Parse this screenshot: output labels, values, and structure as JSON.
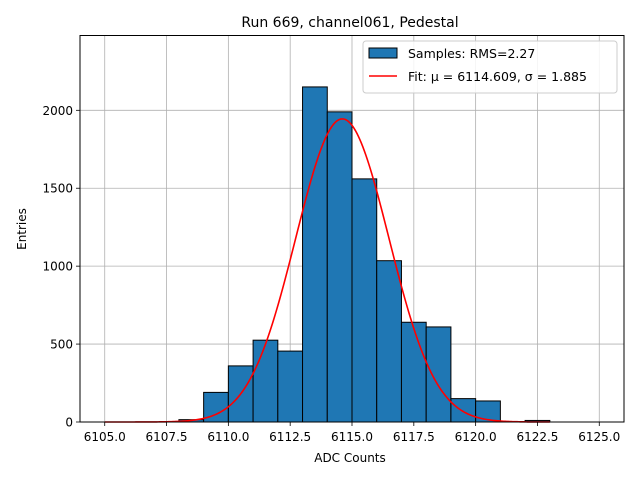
{
  "chart_data": {
    "type": "bar",
    "title": "Run 669, channel061, Pedestal",
    "xlabel": "ADC Counts",
    "ylabel": "Entries",
    "xlim": [
      6104.0,
      6126.0
    ],
    "ylim": [
      0,
      2480
    ],
    "xticks": [
      6105.0,
      6107.5,
      6110.0,
      6112.5,
      6115.0,
      6117.5,
      6120.0,
      6122.5,
      6125.0
    ],
    "xtick_labels": [
      "6105.0",
      "6107.5",
      "6110.0",
      "6112.5",
      "6115.0",
      "6117.5",
      "6120.0",
      "6122.5",
      "6125.0"
    ],
    "yticks": [
      0,
      500,
      1000,
      1500,
      2000
    ],
    "ytick_labels": [
      "0",
      "500",
      "1000",
      "1500",
      "2000"
    ],
    "grid": true,
    "legend_position": "top-right",
    "histogram": {
      "name": "Samples: RMS=2.27",
      "color": "#1f77b4",
      "bin_width": 1.0,
      "bins": [
        {
          "x0": 6108,
          "count": 15
        },
        {
          "x0": 6109,
          "count": 190
        },
        {
          "x0": 6110,
          "count": 360
        },
        {
          "x0": 6111,
          "count": 525
        },
        {
          "x0": 6112,
          "count": 455
        },
        {
          "x0": 6113,
          "count": 2150
        },
        {
          "x0": 6114,
          "count": 1990
        },
        {
          "x0": 6115,
          "count": 1560
        },
        {
          "x0": 6116,
          "count": 1035
        },
        {
          "x0": 6117,
          "count": 640
        },
        {
          "x0": 6118,
          "count": 610
        },
        {
          "x0": 6119,
          "count": 150
        },
        {
          "x0": 6120,
          "count": 135
        },
        {
          "x0": 6121,
          "count": 0
        },
        {
          "x0": 6122,
          "count": 10
        }
      ]
    },
    "fit": {
      "name": "Fit: μ = 6114.609, σ = 1.885",
      "color": "#ff0000",
      "mu": 6114.609,
      "sigma": 1.885,
      "amplitude": 1945,
      "x_range": [
        6105.0,
        6123.0
      ]
    }
  }
}
